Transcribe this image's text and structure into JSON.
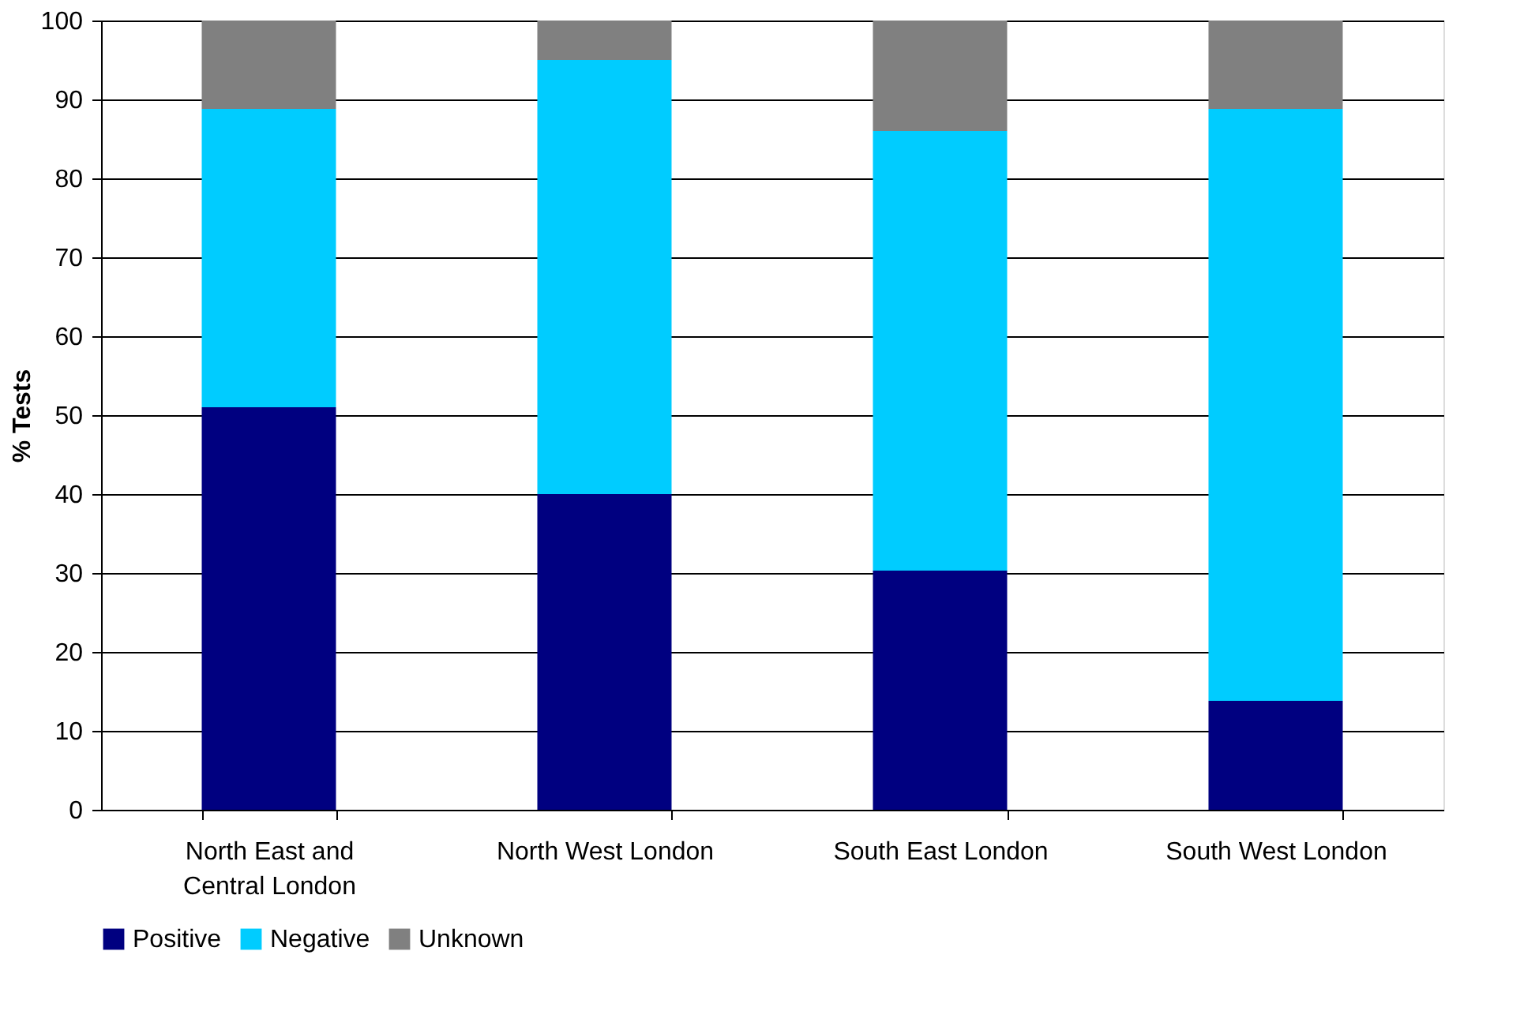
{
  "chart_data": {
    "type": "bar",
    "ylabel": "% Tests",
    "stacked": true,
    "categories": [
      "North East and Central London",
      "North West London",
      "South East London",
      "South West London"
    ],
    "series": [
      {
        "name": "Positive",
        "color": "#000080",
        "values": [
          51,
          40,
          30.3,
          13.8
        ]
      },
      {
        "name": "Negative",
        "color": "#00ccff",
        "values": [
          37.8,
          55,
          55.7,
          75
        ]
      },
      {
        "name": "Unknown",
        "color": "#808080",
        "values": [
          11.2,
          5,
          14,
          11.2
        ]
      }
    ],
    "ylim": [
      0,
      100
    ],
    "yticks": [
      0,
      10,
      20,
      30,
      40,
      50,
      60,
      70,
      80,
      90,
      100
    ],
    "grid": "y",
    "legend": "bottom"
  }
}
